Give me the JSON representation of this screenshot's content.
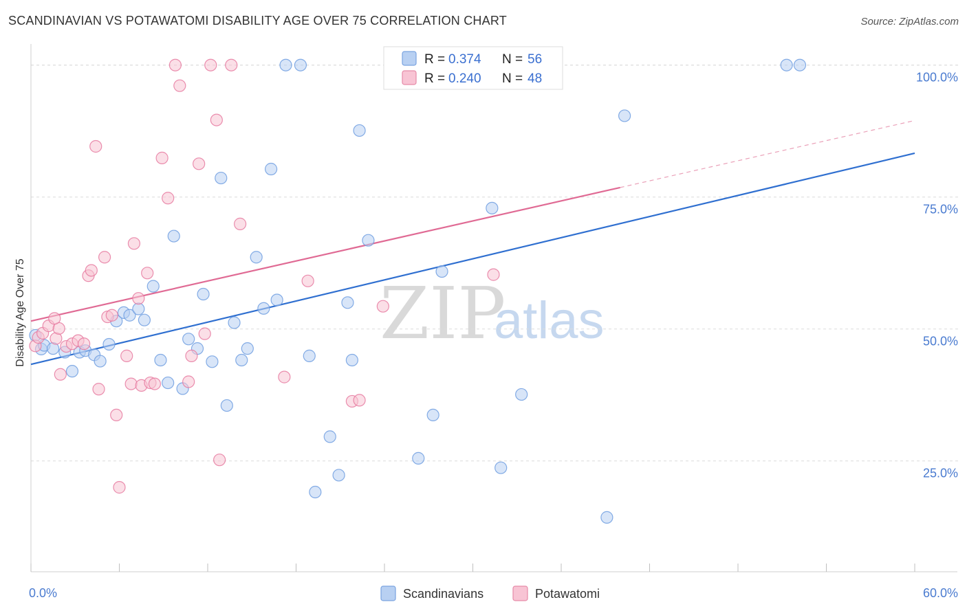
{
  "title": "SCANDINAVIAN VS POTAWATOMI DISABILITY AGE OVER 75 CORRELATION CHART",
  "source": "Source: ZipAtlas.com",
  "watermark": {
    "zip": "ZIP",
    "atlas": "atlas"
  },
  "legend": {
    "r_label": "R =",
    "n_label": "N =",
    "rows": [
      {
        "r": "0.374",
        "n": "56",
        "fill": "#b8d0f2",
        "stroke": "#7aa3e0"
      },
      {
        "r": "0.240",
        "n": "48",
        "fill": "#f8c4d4",
        "stroke": "#e68aa8"
      }
    ]
  },
  "chart_data": {
    "type": "scatter",
    "title": "SCANDINAVIAN VS POTAWATOMI DISABILITY AGE OVER 75 CORRELATION CHART",
    "xlabel": "",
    "ylabel": "Disability Age Over 75",
    "xlim": [
      0,
      60
    ],
    "ylim": [
      4,
      104
    ],
    "x_tick_labels": [
      "0.0%",
      "60.0%"
    ],
    "y_tick_labels": [
      "100.0%",
      "75.0%",
      "50.0%",
      "25.0%"
    ],
    "y_ticks": [
      100,
      75,
      50,
      25
    ],
    "grid": true,
    "legend_position": "top-center",
    "series": [
      {
        "name": "Scandinavians",
        "color": "#6f9de0",
        "fill": "#b8d0f2",
        "trend": {
          "x0": 0,
          "y0": 43.3,
          "x1": 60,
          "y1": 83.3
        },
        "points": [
          [
            0.3,
            48.8
          ],
          [
            0.7,
            46.2
          ],
          [
            0.9,
            46.9
          ],
          [
            1.5,
            46.3
          ],
          [
            2.3,
            45.6
          ],
          [
            2.8,
            42.0
          ],
          [
            3.3,
            45.6
          ],
          [
            3.7,
            45.9
          ],
          [
            4.3,
            45.1
          ],
          [
            4.7,
            43.9
          ],
          [
            5.3,
            47.1
          ],
          [
            5.8,
            51.5
          ],
          [
            6.3,
            53.1
          ],
          [
            6.7,
            52.6
          ],
          [
            7.3,
            53.8
          ],
          [
            7.7,
            51.7
          ],
          [
            8.3,
            58.1
          ],
          [
            8.8,
            44.1
          ],
          [
            9.3,
            39.8
          ],
          [
            9.7,
            67.6
          ],
          [
            10.3,
            38.7
          ],
          [
            10.7,
            48.1
          ],
          [
            11.3,
            46.3
          ],
          [
            11.7,
            56.6
          ],
          [
            12.3,
            43.8
          ],
          [
            12.9,
            78.6
          ],
          [
            13.3,
            35.5
          ],
          [
            13.8,
            51.2
          ],
          [
            14.3,
            44.1
          ],
          [
            14.7,
            46.3
          ],
          [
            15.3,
            63.6
          ],
          [
            15.8,
            53.9
          ],
          [
            16.3,
            80.3
          ],
          [
            16.7,
            55.5
          ],
          [
            18.3,
            100.0
          ],
          [
            18.9,
            44.9
          ],
          [
            20.3,
            29.6
          ],
          [
            20.9,
            22.3
          ],
          [
            21.5,
            55.0
          ],
          [
            21.8,
            44.1
          ],
          [
            22.3,
            87.6
          ],
          [
            22.9,
            66.8
          ],
          [
            26.3,
            25.5
          ],
          [
            27.3,
            33.7
          ],
          [
            27.9,
            60.9
          ],
          [
            31.3,
            72.9
          ],
          [
            31.9,
            23.7
          ],
          [
            33.3,
            37.6
          ],
          [
            39.1,
            14.3
          ],
          [
            40.3,
            90.4
          ],
          [
            51.3,
            100.0
          ],
          [
            52.2,
            100.0
          ],
          [
            27.3,
            100.0
          ],
          [
            34.3,
            100.0
          ],
          [
            19.3,
            19.1
          ],
          [
            17.3,
            100.0
          ]
        ]
      },
      {
        "name": "Potawatomi",
        "color": "#e67aa0",
        "fill": "#f8c4d4",
        "trend": {
          "x0": 0,
          "y0": 51.5,
          "x1": 40,
          "y1": 76.8,
          "dash_x1": 60,
          "dash_y1": 89.5
        },
        "points": [
          [
            0.3,
            46.8
          ],
          [
            0.5,
            48.4
          ],
          [
            0.8,
            49.2
          ],
          [
            1.2,
            50.6
          ],
          [
            1.7,
            48.2
          ],
          [
            1.9,
            50.1
          ],
          [
            2.4,
            46.7
          ],
          [
            2.8,
            47.2
          ],
          [
            1.6,
            52.0
          ],
          [
            3.2,
            47.8
          ],
          [
            3.6,
            47.2
          ],
          [
            3.9,
            60.1
          ],
          [
            4.1,
            61.1
          ],
          [
            4.4,
            84.6
          ],
          [
            4.6,
            38.6
          ],
          [
            5.0,
            63.6
          ],
          [
            5.2,
            52.3
          ],
          [
            5.5,
            52.6
          ],
          [
            5.8,
            33.7
          ],
          [
            6.0,
            20.0
          ],
          [
            6.5,
            44.9
          ],
          [
            6.8,
            39.6
          ],
          [
            7.0,
            66.2
          ],
          [
            7.3,
            55.8
          ],
          [
            7.5,
            39.3
          ],
          [
            7.9,
            60.6
          ],
          [
            8.1,
            39.8
          ],
          [
            8.4,
            39.6
          ],
          [
            8.9,
            82.4
          ],
          [
            9.3,
            74.8
          ],
          [
            9.8,
            100.0
          ],
          [
            10.1,
            96.1
          ],
          [
            10.7,
            40.0
          ],
          [
            10.9,
            44.9
          ],
          [
            11.4,
            81.3
          ],
          [
            11.8,
            49.1
          ],
          [
            12.2,
            100.0
          ],
          [
            12.6,
            89.6
          ],
          [
            12.8,
            25.2
          ],
          [
            13.6,
            100.0
          ],
          [
            14.2,
            69.9
          ],
          [
            17.2,
            40.9
          ],
          [
            18.8,
            59.1
          ],
          [
            21.8,
            36.3
          ],
          [
            22.3,
            36.5
          ],
          [
            23.9,
            54.3
          ],
          [
            31.4,
            60.3
          ],
          [
            2.0,
            41.4
          ]
        ]
      }
    ]
  },
  "bottom_legend": [
    {
      "label": "Scandinavians",
      "fill": "#b8d0f2",
      "stroke": "#7aa3e0"
    },
    {
      "label": "Potawatomi",
      "fill": "#f8c4d4",
      "stroke": "#e68aa8"
    }
  ]
}
